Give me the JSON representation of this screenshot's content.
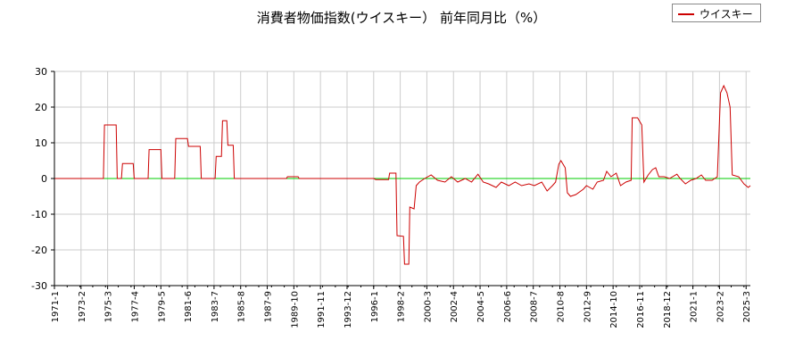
{
  "chart_data": {
    "type": "line",
    "title": "消費者物価指数(ウイスキー） 前年同月比（%）",
    "xlabel": "",
    "ylabel": "",
    "ylim": [
      -30,
      30
    ],
    "yticks": [
      -30,
      -20,
      -10,
      0,
      10,
      20,
      30
    ],
    "grid": true,
    "legend_position": "top-right",
    "x_range": [
      "1971-1",
      "2025-7"
    ],
    "x_tick_labels": [
      "1971-1",
      "1973-2",
      "1975-3",
      "1977-4",
      "1979-5",
      "1981-6",
      "1983-7",
      "1985-8",
      "1987-9",
      "1989-10",
      "1991-11",
      "1993-12",
      "1996-1",
      "1998-2",
      "2000-3",
      "2002-4",
      "2004-5",
      "2006-6",
      "2008-7",
      "2010-8",
      "2012-9",
      "2014-10",
      "2016-11",
      "2018-12",
      "2021-1",
      "2023-2",
      "2025-3"
    ],
    "zero_line_color": "#00cc00",
    "series": [
      {
        "name": "ウイスキー",
        "color": "#cc0000",
        "points": [
          [
            "1971-1",
            0
          ],
          [
            "1974-11",
            0
          ],
          [
            "1974-12",
            15
          ],
          [
            "1975-11",
            15
          ],
          [
            "1975-12",
            0
          ],
          [
            "1976-4",
            0
          ],
          [
            "1976-5",
            4.2
          ],
          [
            "1977-3",
            4.2
          ],
          [
            "1977-4",
            0
          ],
          [
            "1978-5",
            0
          ],
          [
            "1978-6",
            8.1
          ],
          [
            "1979-5",
            8.1
          ],
          [
            "1979-6",
            0
          ],
          [
            "1980-6",
            0
          ],
          [
            "1980-7",
            11.2
          ],
          [
            "1981-6",
            11.2
          ],
          [
            "1981-7",
            9
          ],
          [
            "1982-6",
            9
          ],
          [
            "1982-7",
            0
          ],
          [
            "1983-8",
            0
          ],
          [
            "1983-9",
            6.2
          ],
          [
            "1984-2",
            6.2
          ],
          [
            "1984-3",
            16.2
          ],
          [
            "1984-7",
            16.2
          ],
          [
            "1984-8",
            9.3
          ],
          [
            "1985-1",
            9.3
          ],
          [
            "1985-2",
            0
          ],
          [
            "1989-3",
            0
          ],
          [
            "1989-4",
            0.5
          ],
          [
            "1990-2",
            0.5
          ],
          [
            "1990-3",
            0
          ],
          [
            "1996-1",
            0
          ],
          [
            "1996-3",
            -0.3
          ],
          [
            "1997-3",
            -0.3
          ],
          [
            "1997-4",
            1.5
          ],
          [
            "1997-10",
            1.5
          ],
          [
            "1997-11",
            -16
          ],
          [
            "1998-5",
            -16.2
          ],
          [
            "1998-6",
            -24
          ],
          [
            "1998-10",
            -24
          ],
          [
            "1998-11",
            -8
          ],
          [
            "1999-3",
            -8.5
          ],
          [
            "1999-5",
            -2
          ],
          [
            "1999-8",
            -1
          ],
          [
            "2000-1",
            0
          ],
          [
            "2000-7",
            1
          ],
          [
            "2001-1",
            -0.5
          ],
          [
            "2001-8",
            -1
          ],
          [
            "2002-2",
            0.5
          ],
          [
            "2002-8",
            -1
          ],
          [
            "2003-3",
            0
          ],
          [
            "2003-9",
            -1
          ],
          [
            "2004-3",
            1.2
          ],
          [
            "2004-8",
            -1
          ],
          [
            "2005-1",
            -1.5
          ],
          [
            "2005-8",
            -2.5
          ],
          [
            "2006-1",
            -1
          ],
          [
            "2006-8",
            -2
          ],
          [
            "2007-2",
            -1
          ],
          [
            "2007-8",
            -2
          ],
          [
            "2008-3",
            -1.5
          ],
          [
            "2008-8",
            -2
          ],
          [
            "2009-3",
            -1
          ],
          [
            "2009-8",
            -3.5
          ],
          [
            "2010-1",
            -2
          ],
          [
            "2010-4",
            -1
          ],
          [
            "2010-7",
            4
          ],
          [
            "2010-9",
            5
          ],
          [
            "2011-1",
            3
          ],
          [
            "2011-3",
            -4
          ],
          [
            "2011-6",
            -5
          ],
          [
            "2011-11",
            -4.5
          ],
          [
            "2012-6",
            -3
          ],
          [
            "2012-9",
            -2
          ],
          [
            "2013-3",
            -3
          ],
          [
            "2013-7",
            -1
          ],
          [
            "2014-1",
            -0.5
          ],
          [
            "2014-4",
            2
          ],
          [
            "2014-8",
            0.5
          ],
          [
            "2015-1",
            1.5
          ],
          [
            "2015-5",
            -2
          ],
          [
            "2015-10",
            -1
          ],
          [
            "2016-3",
            -0.5
          ],
          [
            "2016-4",
            17
          ],
          [
            "2016-9",
            17
          ],
          [
            "2017-1",
            15
          ],
          [
            "2017-3",
            -1
          ],
          [
            "2017-7",
            1
          ],
          [
            "2017-11",
            2.5
          ],
          [
            "2018-2",
            3
          ],
          [
            "2018-5",
            0.5
          ],
          [
            "2018-10",
            0.5
          ],
          [
            "2019-3",
            0
          ],
          [
            "2019-10",
            1.2
          ],
          [
            "2020-1",
            0
          ],
          [
            "2020-6",
            -1.5
          ],
          [
            "2020-11",
            -0.5
          ],
          [
            "2021-4",
            0
          ],
          [
            "2021-9",
            1
          ],
          [
            "2022-1",
            -0.5
          ],
          [
            "2022-7",
            -0.5
          ],
          [
            "2022-12",
            0.5
          ],
          [
            "2023-3",
            24
          ],
          [
            "2023-6",
            26
          ],
          [
            "2023-9",
            24
          ],
          [
            "2023-12",
            20
          ],
          [
            "2024-2",
            1
          ],
          [
            "2024-8",
            0.5
          ],
          [
            "2025-1",
            -1.5
          ],
          [
            "2025-5",
            -2.5
          ],
          [
            "2025-7",
            -2
          ]
        ]
      }
    ]
  }
}
